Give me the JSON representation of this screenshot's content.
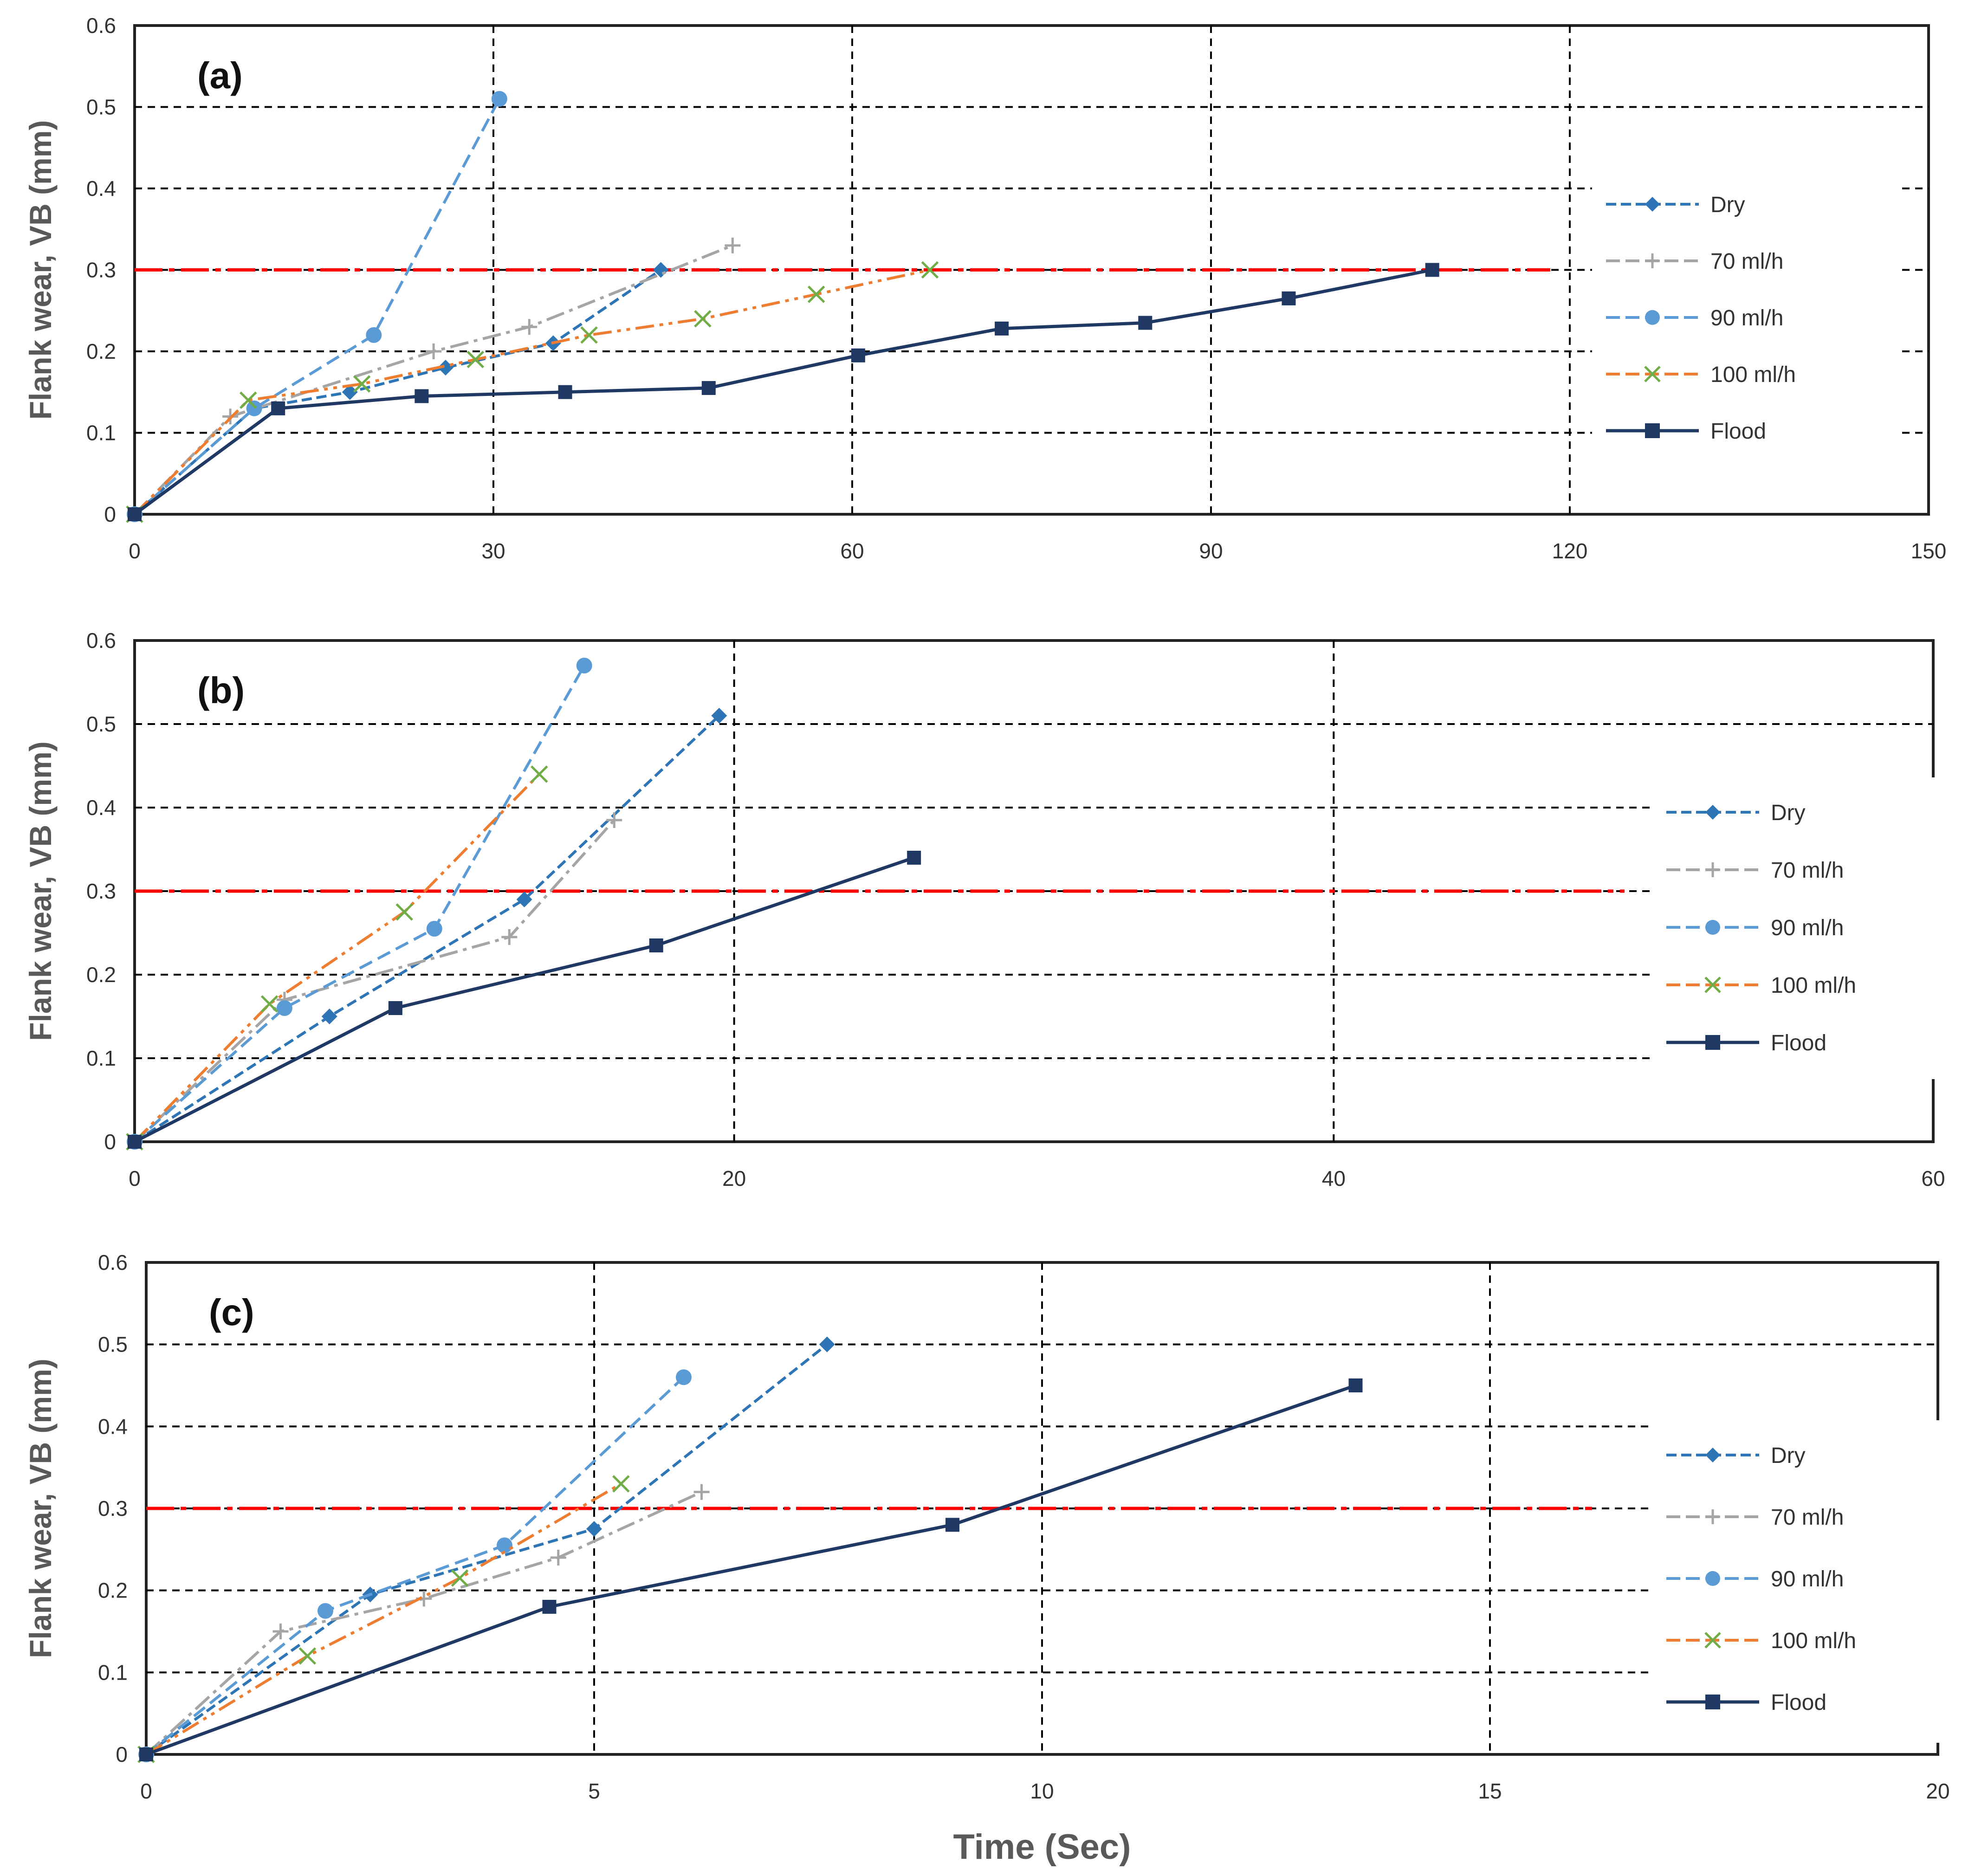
{
  "colors": {
    "dry": "#2e75b6",
    "ml70": "#a5a5a5",
    "ml90": "#5b9bd5",
    "ml100": "#ed7d31",
    "ml100_marker": "#70ad47",
    "flood": "#1f3864",
    "threshold": "#ff0000",
    "grid": "#000000"
  },
  "shared": {
    "ylabel": "Flank wear, VB (mm)",
    "xlabel": "Time (Sec)",
    "legend": [
      "Dry",
      "70 ml/h",
      "90 ml/h",
      "100 ml/h",
      "Flood"
    ]
  },
  "chart_data": [
    {
      "type": "line",
      "panel": "(a)",
      "xlim": [
        0,
        150
      ],
      "ylim": [
        0,
        0.6
      ],
      "xticks": [
        0,
        30,
        60,
        90,
        120,
        150
      ],
      "yticks": [
        0,
        0.1,
        0.2,
        0.3,
        0.4,
        0.5,
        0.6
      ],
      "vgrid": [
        30,
        60,
        90,
        120
      ],
      "threshold": 0.3,
      "series": [
        {
          "name": "Dry",
          "x": [
            0,
            10,
            18,
            26,
            35,
            44
          ],
          "y": [
            0,
            0.13,
            0.15,
            0.18,
            0.21,
            0.3
          ]
        },
        {
          "name": "70 ml/h",
          "x": [
            0,
            8,
            25,
            33,
            50
          ],
          "y": [
            0,
            0.12,
            0.2,
            0.23,
            0.33
          ]
        },
        {
          "name": "90 ml/h",
          "x": [
            0,
            10,
            20,
            30.5
          ],
          "y": [
            0,
            0.13,
            0.22,
            0.51
          ]
        },
        {
          "name": "100 ml/h",
          "x": [
            0,
            9.5,
            19,
            28.5,
            38,
            47.5,
            57,
            66.5
          ],
          "y": [
            0,
            0.14,
            0.16,
            0.19,
            0.22,
            0.24,
            0.27,
            0.3
          ]
        },
        {
          "name": "Flood",
          "x": [
            0,
            12,
            24,
            36,
            48,
            60.5,
            72.5,
            84.5,
            96.5,
            108.5
          ],
          "y": [
            0,
            0.13,
            0.145,
            0.15,
            0.155,
            0.195,
            0.228,
            0.235,
            0.265,
            0.3
          ]
        }
      ]
    },
    {
      "type": "line",
      "panel": "(b)",
      "xlim": [
        0,
        60
      ],
      "ylim": [
        0,
        0.6
      ],
      "xticks": [
        0,
        20,
        40,
        60
      ],
      "yticks": [
        0,
        0.1,
        0.2,
        0.3,
        0.4,
        0.5,
        0.6
      ],
      "vgrid": [
        20,
        40
      ],
      "threshold": 0.3,
      "series": [
        {
          "name": "Dry",
          "x": [
            0,
            6.5,
            13,
            19.5
          ],
          "y": [
            0,
            0.15,
            0.29,
            0.51
          ]
        },
        {
          "name": "70 ml/h",
          "x": [
            0,
            5,
            12.5,
            16
          ],
          "y": [
            0,
            0.17,
            0.245,
            0.385
          ]
        },
        {
          "name": "90 ml/h",
          "x": [
            0,
            5,
            10,
            15
          ],
          "y": [
            0,
            0.16,
            0.255,
            0.57
          ]
        },
        {
          "name": "100 ml/h",
          "x": [
            0,
            4.5,
            9,
            13.5
          ],
          "y": [
            0,
            0.165,
            0.275,
            0.44
          ]
        },
        {
          "name": "Flood",
          "x": [
            0,
            8.7,
            17.4,
            26
          ],
          "y": [
            0,
            0.16,
            0.235,
            0.34
          ]
        }
      ]
    },
    {
      "type": "line",
      "panel": "(c)",
      "xlim": [
        0,
        20
      ],
      "ylim": [
        0,
        0.6
      ],
      "xticks": [
        0,
        5,
        10,
        15,
        20
      ],
      "yticks": [
        0,
        0.1,
        0.2,
        0.3,
        0.4,
        0.5,
        0.6
      ],
      "vgrid": [
        5,
        10,
        15
      ],
      "threshold": 0.3,
      "series": [
        {
          "name": "Dry",
          "x": [
            0,
            2.5,
            5,
            7.6
          ],
          "y": [
            0,
            0.195,
            0.275,
            0.5
          ]
        },
        {
          "name": "70 ml/h",
          "x": [
            0,
            1.5,
            3.1,
            4.6,
            6.2
          ],
          "y": [
            0,
            0.15,
            0.19,
            0.24,
            0.32
          ]
        },
        {
          "name": "90 ml/h",
          "x": [
            0,
            2,
            4,
            6
          ],
          "y": [
            0,
            0.175,
            0.255,
            0.46
          ]
        },
        {
          "name": "100 ml/h",
          "x": [
            0,
            1.8,
            3.5,
            5.3
          ],
          "y": [
            0,
            0.12,
            0.215,
            0.33
          ]
        },
        {
          "name": "Flood",
          "x": [
            0,
            4.5,
            9,
            13.5
          ],
          "y": [
            0,
            0.18,
            0.28,
            0.45
          ]
        }
      ]
    }
  ]
}
